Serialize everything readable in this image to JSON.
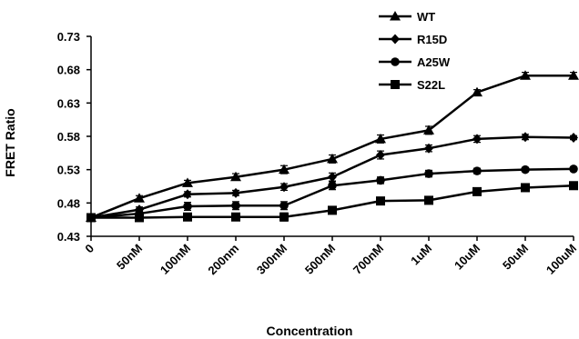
{
  "chart_data": {
    "type": "line",
    "title": "",
    "xlabel": "Concentration",
    "ylabel": "FRET Ratio",
    "categories": [
      "0",
      "50nM",
      "100nM",
      "200nm",
      "300nM",
      "500nM",
      "700nM",
      "1uM",
      "10uM",
      "50uM",
      "100uM"
    ],
    "ylim": [
      0.43,
      0.73
    ],
    "yticks": [
      "0.43",
      "0.48",
      "0.53",
      "0.58",
      "0.63",
      "0.68",
      "0.73"
    ],
    "grid": false,
    "legend_position": "top-right",
    "series": [
      {
        "name": "WT",
        "marker": "triangle",
        "values": [
          0.458,
          0.487,
          0.51,
          0.519,
          0.53,
          0.546,
          0.576,
          0.589,
          0.646,
          0.671,
          0.671
        ],
        "errors": [
          0.003,
          0.004,
          0.004,
          0.005,
          0.006,
          0.006,
          0.006,
          0.006,
          0.004,
          0.005,
          0.005
        ]
      },
      {
        "name": "R15D",
        "marker": "diamond",
        "values": [
          0.458,
          0.47,
          0.493,
          0.495,
          0.504,
          0.519,
          0.552,
          0.562,
          0.576,
          0.579,
          0.578
        ],
        "errors": [
          0.003,
          0.004,
          0.004,
          0.004,
          0.005,
          0.006,
          0.006,
          0.005,
          0.005,
          0.004,
          0.003
        ]
      },
      {
        "name": "A25W",
        "marker": "circle",
        "values": [
          0.458,
          0.464,
          0.475,
          0.476,
          0.476,
          0.506,
          0.514,
          0.524,
          0.528,
          0.53,
          0.531
        ],
        "errors": [
          0.003,
          0.004,
          0.006,
          0.006,
          0.006,
          0.006,
          0.005,
          0.005,
          0.004,
          0.003,
          0.003
        ]
      },
      {
        "name": "S22L",
        "marker": "square",
        "values": [
          0.458,
          0.458,
          0.459,
          0.459,
          0.459,
          0.469,
          0.483,
          0.484,
          0.497,
          0.503,
          0.506
        ],
        "errors": [
          0.003,
          0.003,
          0.004,
          0.004,
          0.006,
          0.005,
          0.005,
          0.005,
          0.003,
          0.003,
          0.003
        ]
      }
    ]
  }
}
